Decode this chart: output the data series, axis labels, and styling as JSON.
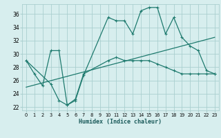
{
  "xlabel": "Humidex (Indice chaleur)",
  "xlim": [
    -0.5,
    23.5
  ],
  "ylim": [
    21.5,
    37.5
  ],
  "yticks": [
    22,
    24,
    26,
    28,
    30,
    32,
    34,
    36
  ],
  "xticks": [
    0,
    1,
    2,
    3,
    4,
    5,
    6,
    7,
    8,
    9,
    10,
    11,
    12,
    13,
    14,
    15,
    16,
    17,
    18,
    19,
    20,
    21,
    22,
    23
  ],
  "bg_color": "#d7eeee",
  "grid_color": "#aacfcf",
  "line_color": "#1e7a6e",
  "line1_x": [
    0,
    1,
    2,
    3,
    4,
    5,
    6,
    7,
    10,
    11,
    12,
    13,
    14,
    15,
    16,
    17,
    18,
    19,
    20,
    21,
    22,
    23
  ],
  "line1_y": [
    29,
    27,
    25.2,
    30.5,
    30.5,
    22.3,
    23.0,
    26.8,
    35.5,
    35.0,
    35.0,
    33.0,
    36.5,
    37.0,
    37.0,
    33.0,
    35.5,
    32.5,
    31.2,
    30.5,
    27.5,
    27.0
  ],
  "line2_x": [
    0,
    3,
    4,
    5,
    6,
    7,
    10,
    11,
    12,
    13,
    14,
    15,
    16,
    17,
    18,
    19,
    20,
    21,
    22,
    23
  ],
  "line2_y": [
    29,
    25.5,
    23.0,
    22.3,
    23.2,
    27.0,
    29.0,
    29.5,
    29.0,
    29.0,
    29.0,
    29.0,
    28.5,
    28.0,
    27.5,
    27.0,
    27.0,
    27.0,
    27.0,
    27.0
  ],
  "line3_x": [
    0,
    23
  ],
  "line3_y": [
    25.0,
    32.5
  ]
}
